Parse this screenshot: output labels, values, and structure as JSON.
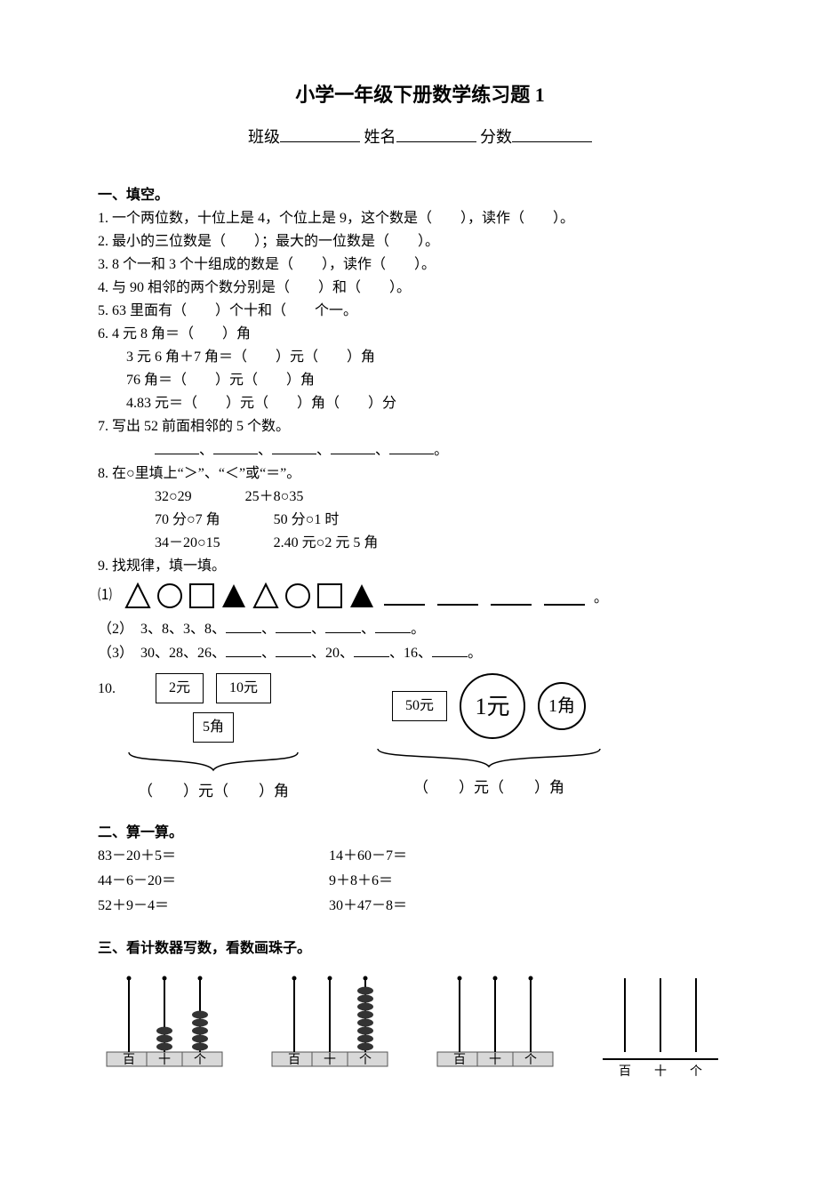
{
  "title": "小学一年级下册数学练习题 1",
  "header": {
    "class_label": "班级",
    "name_label": "姓名",
    "score_label": "分数"
  },
  "s1": {
    "head": "一、填空。",
    "q1": "1. 一个两位数，十位上是 4，个位上是 9，这个数是（　　），读作（　　）。",
    "q2": "2. 最小的三位数是（　　）；最大的一位数是（　　）。",
    "q3": "3. 8 个一和 3 个十组成的数是（　　），读作（　　）。",
    "q4": "4. 与 90 相邻的两个数分别是（　　）和（　　）。",
    "q5": "5. 63 里面有（　　）个十和（　　个一。",
    "q6a": "6. 4 元 8 角＝（　　）角",
    "q6b": "3 元 6 角＋7 角＝（　　）元（　　）角",
    "q6c": "76 角＝（　　）元（　　）角",
    "q6d": "4.83 元＝（　　）元（　　）角（　　）分",
    "q7": "7. 写出 52 前面相邻的 5 个数。",
    "q8": "8. 在○里填上“＞”、“＜”或“＝”。",
    "q8r": [
      [
        "32○29",
        "25＋8○35"
      ],
      [
        "70 分○7 角",
        "50 分○1 时"
      ],
      [
        "34－20○15",
        "2.40 元○2 元 5 角"
      ]
    ],
    "q9": "9. 找规律，填一填。",
    "q9p1_prefix": "⑴",
    "q9p2": "（2）　3、8、3、8、",
    "q9p3a": "（3）　30、28、26、",
    "q9p3b": "、20、",
    "q9p3c": "、16、",
    "q10_prefix": "10.",
    "q10": {
      "left": {
        "boxes": [
          "2元",
          "10元"
        ],
        "box2": "5角",
        "answer": "（　　）元（　　）角"
      },
      "right": {
        "box": "50元",
        "coins": [
          "1元",
          "1角"
        ],
        "answer": "（　　）元（　　）角"
      }
    }
  },
  "s2": {
    "head": "二、算一算。",
    "rows": [
      [
        "83－20＋5＝",
        "14＋60－7＝"
      ],
      [
        "44－6－20＝",
        "9＋8＋6＝"
      ],
      [
        "52＋9－4＝",
        "30＋47－8＝"
      ]
    ]
  },
  "s3": {
    "head": "三、看计数器写数，看数画珠子。"
  },
  "abacus": {
    "labels": [
      "百",
      "十",
      "个"
    ],
    "beads": [
      [
        0,
        3,
        5
      ],
      [
        0,
        0,
        8
      ],
      [
        0,
        0,
        0
      ],
      [
        0,
        0,
        0
      ]
    ],
    "last_simple": true
  },
  "style": {
    "text_color": "#000000",
    "bg": "#ffffff",
    "title_fontsize": 22,
    "body_fontsize": 16,
    "bead_fill": "#333333",
    "base_fill_gray": "#d8d8d8"
  }
}
